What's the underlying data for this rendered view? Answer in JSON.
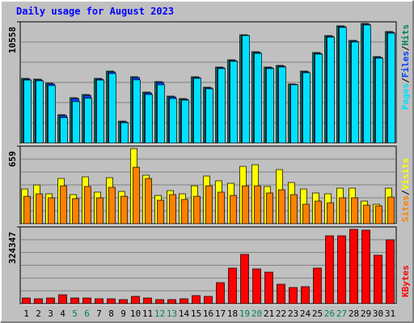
{
  "chart_data": [
    {
      "type": "bar",
      "title": "Daily usage for August 2023",
      "ylim": [
        0,
        10558
      ],
      "yticks": [
        10558
      ],
      "legend_separator": "/",
      "series": [
        {
          "name": "Hits",
          "color": "#00805c",
          "values": [
            5631,
            5561,
            5209,
            2464,
            3942,
            4223,
            5631,
            6265,
            1901,
            5772,
            4435,
            5350,
            4083,
            3871,
            5772,
            4857,
            6617,
            7250,
            9432,
            7954,
            6617,
            6757,
            5138,
            6265,
            7884,
            9362,
            10206,
            8940,
            10418,
            7532,
            9714
          ]
        },
        {
          "name": "Files",
          "color": "#0040ff",
          "values": [
            5560,
            5490,
            5140,
            2390,
            3870,
            4150,
            5560,
            6190,
            1830,
            5700,
            4360,
            5280,
            4010,
            3800,
            5700,
            4790,
            6550,
            7180,
            9390,
            7880,
            6550,
            6690,
            5100,
            6190,
            7810,
            9290,
            10140,
            8870,
            10350,
            7460,
            9640
          ]
        },
        {
          "name": "Pages",
          "color": "#00e0ff",
          "values": [
            5480,
            5420,
            5000,
            2200,
            3600,
            3900,
            5480,
            6050,
            1760,
            5500,
            4220,
            5070,
            3870,
            3730,
            5630,
            4720,
            6480,
            7110,
            9360,
            7810,
            6480,
            6620,
            5070,
            6120,
            7740,
            9220,
            10070,
            8800,
            10280,
            7390,
            9570
          ]
        }
      ]
    },
    {
      "type": "bar",
      "ylim": [
        0,
        659
      ],
      "yticks": [
        659
      ],
      "legend_separator": "/",
      "series": [
        {
          "name": "Visits",
          "color": "#ffff00",
          "values": [
            295,
            329,
            254,
            384,
            247,
            398,
            268,
            391,
            274,
            638,
            412,
            240,
            281,
            254,
            322,
            405,
            364,
            343,
            487,
            501,
            316,
            460,
            350,
            295,
            261,
            254,
            302,
            302,
            192,
            165,
            302
          ]
        },
        {
          "name": "Sites",
          "color": "#ff8000",
          "values": [
            233,
            254,
            220,
            322,
            213,
            316,
            220,
            309,
            233,
            480,
            384,
            199,
            247,
            206,
            233,
            322,
            268,
            240,
            322,
            322,
            261,
            288,
            247,
            165,
            192,
            178,
            220,
            220,
            158,
            151,
            226
          ]
        }
      ]
    },
    {
      "type": "bar",
      "ylim": [
        0,
        324347
      ],
      "yticks": [
        324347
      ],
      "categories": [
        "1",
        "2",
        "3",
        "4",
        "5",
        "6",
        "7",
        "8",
        "9",
        "10",
        "11",
        "12",
        "13",
        "14",
        "15",
        "16",
        "17",
        "18",
        "19",
        "20",
        "21",
        "22",
        "23",
        "24",
        "25",
        "26",
        "27",
        "28",
        "29",
        "30",
        "31"
      ],
      "category_colors": [
        "#000000",
        "#000000",
        "#000000",
        "#000000",
        "#00805c",
        "#00805c",
        "#000000",
        "#000000",
        "#000000",
        "#000000",
        "#000000",
        "#00805c",
        "#00805c",
        "#000000",
        "#000000",
        "#000000",
        "#000000",
        "#000000",
        "#00805c",
        "#00805c",
        "#000000",
        "#000000",
        "#000000",
        "#000000",
        "#000000",
        "#00805c",
        "#00805c",
        "#000000",
        "#000000",
        "#000000",
        "#000000"
      ],
      "series": [
        {
          "name": "KBytes",
          "color": "#ff0000",
          "values": [
            23900,
            20500,
            23900,
            37550,
            23900,
            23900,
            20500,
            20500,
            17070,
            30700,
            23900,
            17070,
            17070,
            20500,
            34140,
            30700,
            88760,
            150200,
            208250,
            146800,
            133150,
            81940,
            68280,
            71700,
            150200,
            286800,
            286800,
            314100,
            310700,
            204800,
            269700
          ]
        }
      ]
    }
  ]
}
